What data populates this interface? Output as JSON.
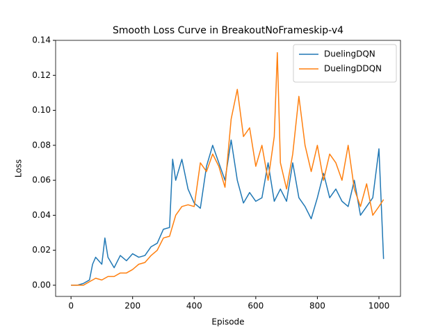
{
  "chart_data": {
    "type": "line",
    "title": "Smooth Loss Curve in BreakoutNoFrameskip-v4",
    "x_label": "Episode",
    "y_label": "Loss",
    "xlim": [
      -50,
      1070
    ],
    "ylim": [
      -0.0064,
      0.14
    ],
    "xticks": [
      0,
      200,
      400,
      600,
      800,
      1000
    ],
    "yticks": [
      {
        "value": 0,
        "label": "0.00"
      },
      {
        "value": 0.02,
        "label": "0.02"
      },
      {
        "value": 0.04,
        "label": "0.04"
      },
      {
        "value": 0.06,
        "label": "0.06"
      },
      {
        "value": 0.08,
        "label": "0.08"
      },
      {
        "value": 0.1,
        "label": "0.10"
      },
      {
        "value": 0.12,
        "label": "0.12"
      },
      {
        "value": 0.14,
        "label": "0.14"
      }
    ],
    "legend": "upper right",
    "series": [
      {
        "name": "DuelingDQN",
        "color": "#1f77b4",
        "x": [
          0,
          20,
          40,
          60,
          70,
          80,
          100,
          110,
          120,
          140,
          160,
          180,
          200,
          220,
          240,
          260,
          280,
          300,
          320,
          330,
          340,
          360,
          380,
          400,
          420,
          440,
          460,
          480,
          500,
          520,
          540,
          560,
          580,
          600,
          620,
          640,
          660,
          680,
          700,
          720,
          740,
          760,
          780,
          800,
          820,
          840,
          860,
          880,
          900,
          920,
          940,
          960,
          980,
          1000,
          1015
        ],
        "values": [
          0,
          0,
          0.001,
          0.003,
          0.012,
          0.016,
          0.012,
          0.027,
          0.016,
          0.01,
          0.017,
          0.014,
          0.018,
          0.016,
          0.017,
          0.022,
          0.024,
          0.032,
          0.033,
          0.072,
          0.06,
          0.072,
          0.055,
          0.047,
          0.044,
          0.068,
          0.08,
          0.07,
          0.06,
          0.083,
          0.06,
          0.047,
          0.053,
          0.048,
          0.05,
          0.07,
          0.048,
          0.055,
          0.048,
          0.07,
          0.05,
          0.045,
          0.038,
          0.05,
          0.064,
          0.05,
          0.055,
          0.048,
          0.045,
          0.06,
          0.04,
          0.045,
          0.05,
          0.078,
          0.015
        ]
      },
      {
        "name": "DuelingDDQN",
        "color": "#ff7f0e",
        "x": [
          0,
          40,
          60,
          80,
          100,
          120,
          140,
          160,
          180,
          200,
          220,
          240,
          260,
          280,
          300,
          320,
          340,
          360,
          380,
          400,
          420,
          440,
          460,
          480,
          500,
          520,
          540,
          560,
          580,
          600,
          620,
          640,
          660,
          670,
          680,
          700,
          720,
          740,
          760,
          780,
          800,
          820,
          840,
          860,
          880,
          900,
          920,
          940,
          960,
          980,
          1000,
          1015
        ],
        "values": [
          0,
          0,
          0.002,
          0.004,
          0.003,
          0.005,
          0.005,
          0.007,
          0.007,
          0.009,
          0.012,
          0.013,
          0.017,
          0.02,
          0.027,
          0.028,
          0.04,
          0.045,
          0.046,
          0.045,
          0.07,
          0.065,
          0.075,
          0.068,
          0.056,
          0.095,
          0.112,
          0.085,
          0.09,
          0.068,
          0.08,
          0.06,
          0.085,
          0.133,
          0.07,
          0.055,
          0.075,
          0.108,
          0.08,
          0.065,
          0.08,
          0.06,
          0.075,
          0.07,
          0.06,
          0.08,
          0.055,
          0.045,
          0.058,
          0.04,
          0.045,
          0.049
        ]
      }
    ]
  }
}
